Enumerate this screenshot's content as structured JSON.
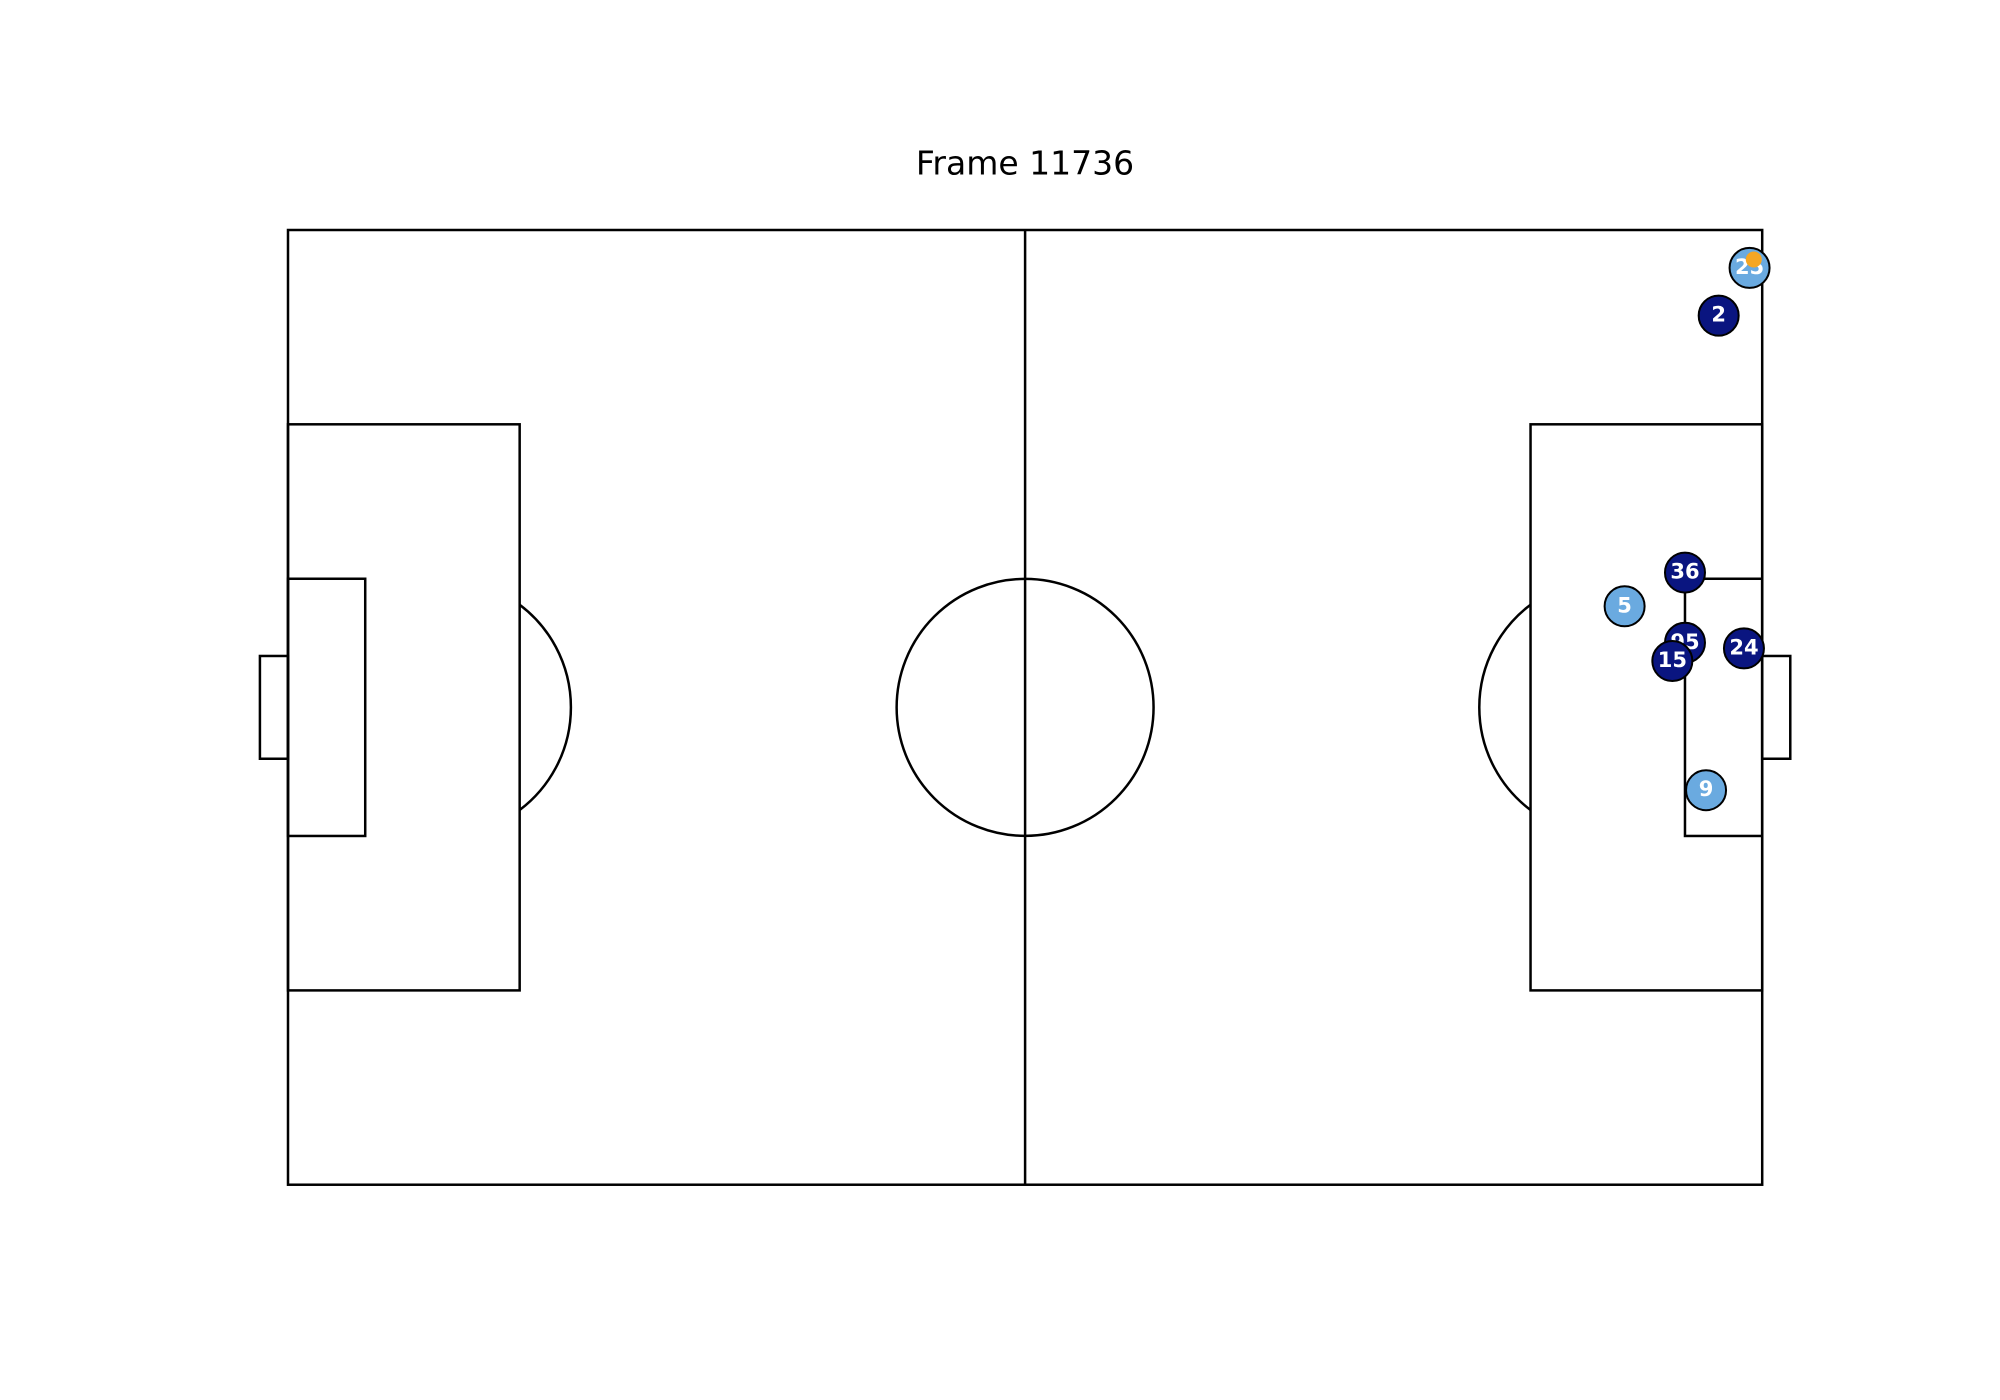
{
  "title": "Frame 11736",
  "players": [
    {
      "number": "25",
      "x": 104.1,
      "y": 2.7,
      "color": "#6aaae0"
    },
    {
      "number": "2",
      "x": 101.9,
      "y": 6.1,
      "color": "#0a1580"
    },
    {
      "number": "36",
      "x": 99.5,
      "y": 24.4,
      "color": "#0a1580"
    },
    {
      "number": "5",
      "x": 95.2,
      "y": 26.8,
      "color": "#6aaae0"
    },
    {
      "number": "95",
      "x": 99.5,
      "y": 29.4,
      "color": "#0a1580"
    },
    {
      "number": "15",
      "x": 98.6,
      "y": 30.7,
      "color": "#0a1580"
    },
    {
      "number": "24",
      "x": 103.7,
      "y": 29.8,
      "color": "#0a1580"
    },
    {
      "number": "9",
      "x": 101.0,
      "y": 39.9,
      "color": "#6aaae0"
    }
  ],
  "ball": {
    "x": 104.4,
    "y": 2.1,
    "color": "#f5a623"
  }
}
